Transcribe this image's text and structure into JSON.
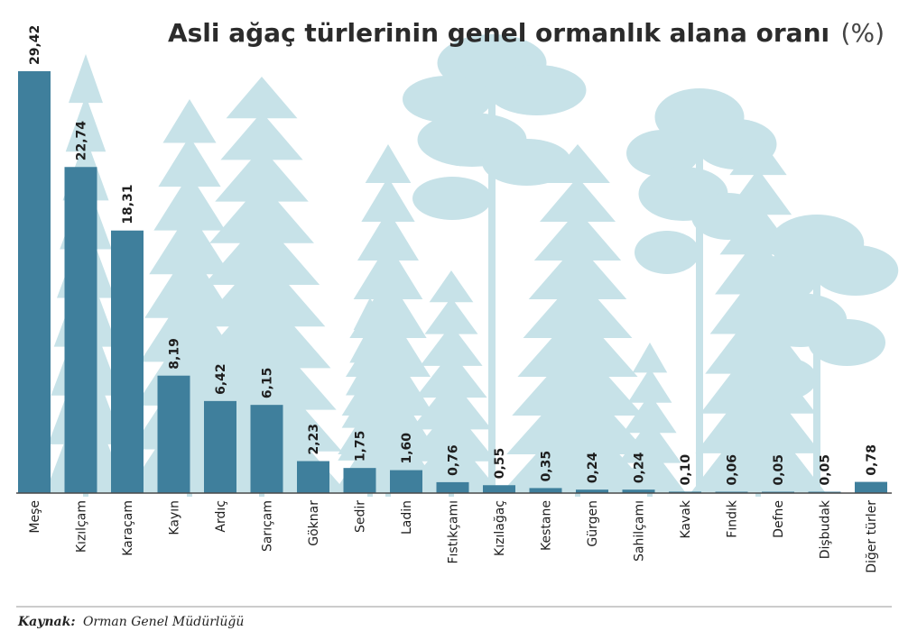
{
  "title": "Asli ağaç türlerinin genel ormanlık alana oranı",
  "title_unit": "(%)",
  "source_label": "Kaynak:",
  "source_text": "Orman Genel Müdürlüğü",
  "colors": {
    "bar": "#3f7f9c",
    "trees": "#c7e2e8",
    "axis": "#4a4a4a"
  },
  "chart_data": {
    "type": "bar",
    "title": "Asli ağaç türlerinin genel ormanlık alana oranı (%)",
    "xlabel": "",
    "ylabel": "",
    "ylim": [
      0,
      29.42
    ],
    "categories": [
      "Meşe",
      "Kızılçam",
      "Karaçam",
      "Kayın",
      "Ardıç",
      "Sarıçam",
      "Göknar",
      "Sedir",
      "Ladin",
      "Fıstıkçamı",
      "Kızılağaç",
      "Kestane",
      "Gürgen",
      "Sahilçamı",
      "Kavak",
      "Fındık",
      "Defne",
      "Dişbudak",
      "Diğer türler"
    ],
    "values": [
      29.42,
      22.74,
      18.31,
      8.19,
      6.42,
      6.15,
      2.23,
      1.75,
      1.6,
      0.76,
      0.55,
      0.35,
      0.24,
      0.24,
      0.1,
      0.06,
      0.05,
      0.05,
      0.78
    ],
    "value_labels": [
      "29,42",
      "22,74",
      "18,31",
      "8,19",
      "6,42",
      "6,15",
      "2,23",
      "1,75",
      "1,60",
      "0,76",
      "0,55",
      "0,35",
      "0,24",
      "0,24",
      "0,10",
      "0,06",
      "0,05",
      "0,05",
      "0,78"
    ],
    "grid": false,
    "legend": "none"
  }
}
